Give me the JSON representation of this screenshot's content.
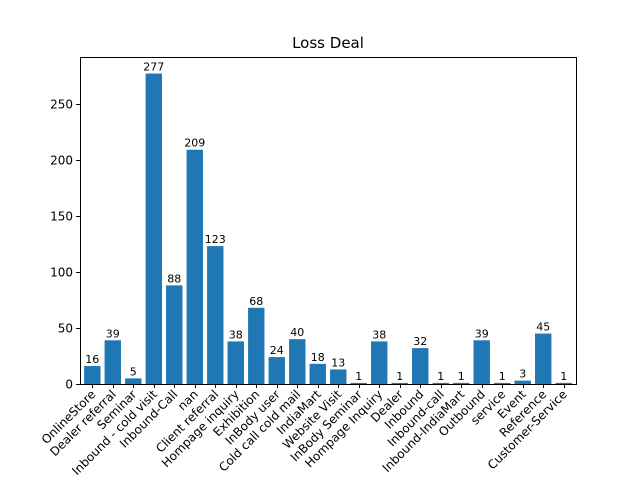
{
  "chart_data": {
    "type": "bar",
    "title": "Loss Deal",
    "xlabel": "",
    "ylabel": "",
    "ylim": [
      0,
      290.85
    ],
    "yticks": [
      0,
      50,
      100,
      150,
      200,
      250
    ],
    "grid": false,
    "bar_color": "#1f77b4",
    "categories": [
      "OnlineStore",
      "Dealer referral",
      "Seminar",
      "Inbound - cold visit",
      "Inbound-Call",
      "nan",
      "Client referral",
      "Hompage inquiry",
      "Exhibition",
      "InBody user",
      "Cold call cold mail",
      "IndiaMart",
      "Website Visit",
      "InBody Seminar",
      "Hompage Inquiry",
      "Dealer",
      "Inbound",
      "Inbound-call",
      "Inbound-IndiaMart",
      "Outbound",
      "service",
      "Event",
      "Reference",
      "Customer-Service"
    ],
    "values": [
      16,
      39,
      5,
      277,
      88,
      209,
      123,
      38,
      68,
      24,
      40,
      18,
      13,
      1,
      38,
      1,
      32,
      1,
      1,
      39,
      1,
      3,
      45,
      1
    ]
  }
}
